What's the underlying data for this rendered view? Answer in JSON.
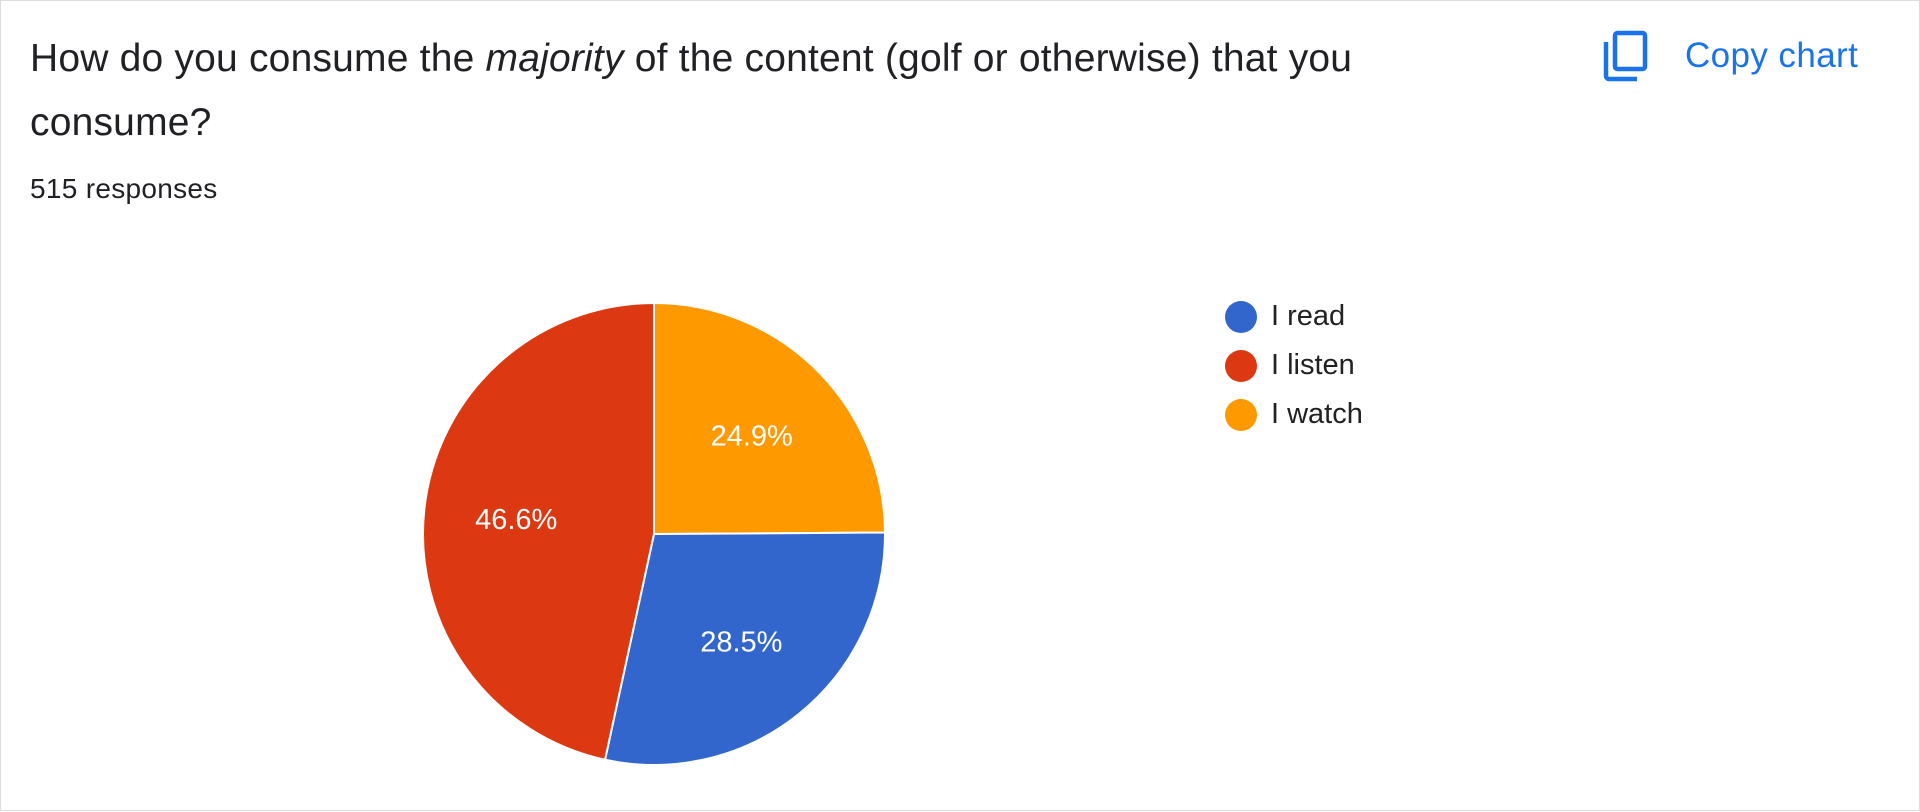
{
  "card": {
    "title_before": "How do you consume the ",
    "title_emph": "majority",
    "title_after": " of the content (golf or otherwise) that you consume?",
    "responses": "515 responses",
    "copy_label": "Copy chart",
    "copy_icon": "copy-icon"
  },
  "chart_data": {
    "type": "pie",
    "title": "How do you consume the majority of the content (golf or otherwise) that you consume?",
    "slices": [
      {
        "label": "I read",
        "value": 28.5,
        "display": "28.5%",
        "color": "#3366cc"
      },
      {
        "label": "I listen",
        "value": 46.6,
        "display": "46.6%",
        "color": "#dc3912"
      },
      {
        "label": "I watch",
        "value": 24.9,
        "display": "24.9%",
        "color": "#ff9900"
      }
    ],
    "legend_position": "right"
  },
  "colors": {
    "accent": "#1a73e8",
    "text": "#202124",
    "border": "#dadce0"
  }
}
